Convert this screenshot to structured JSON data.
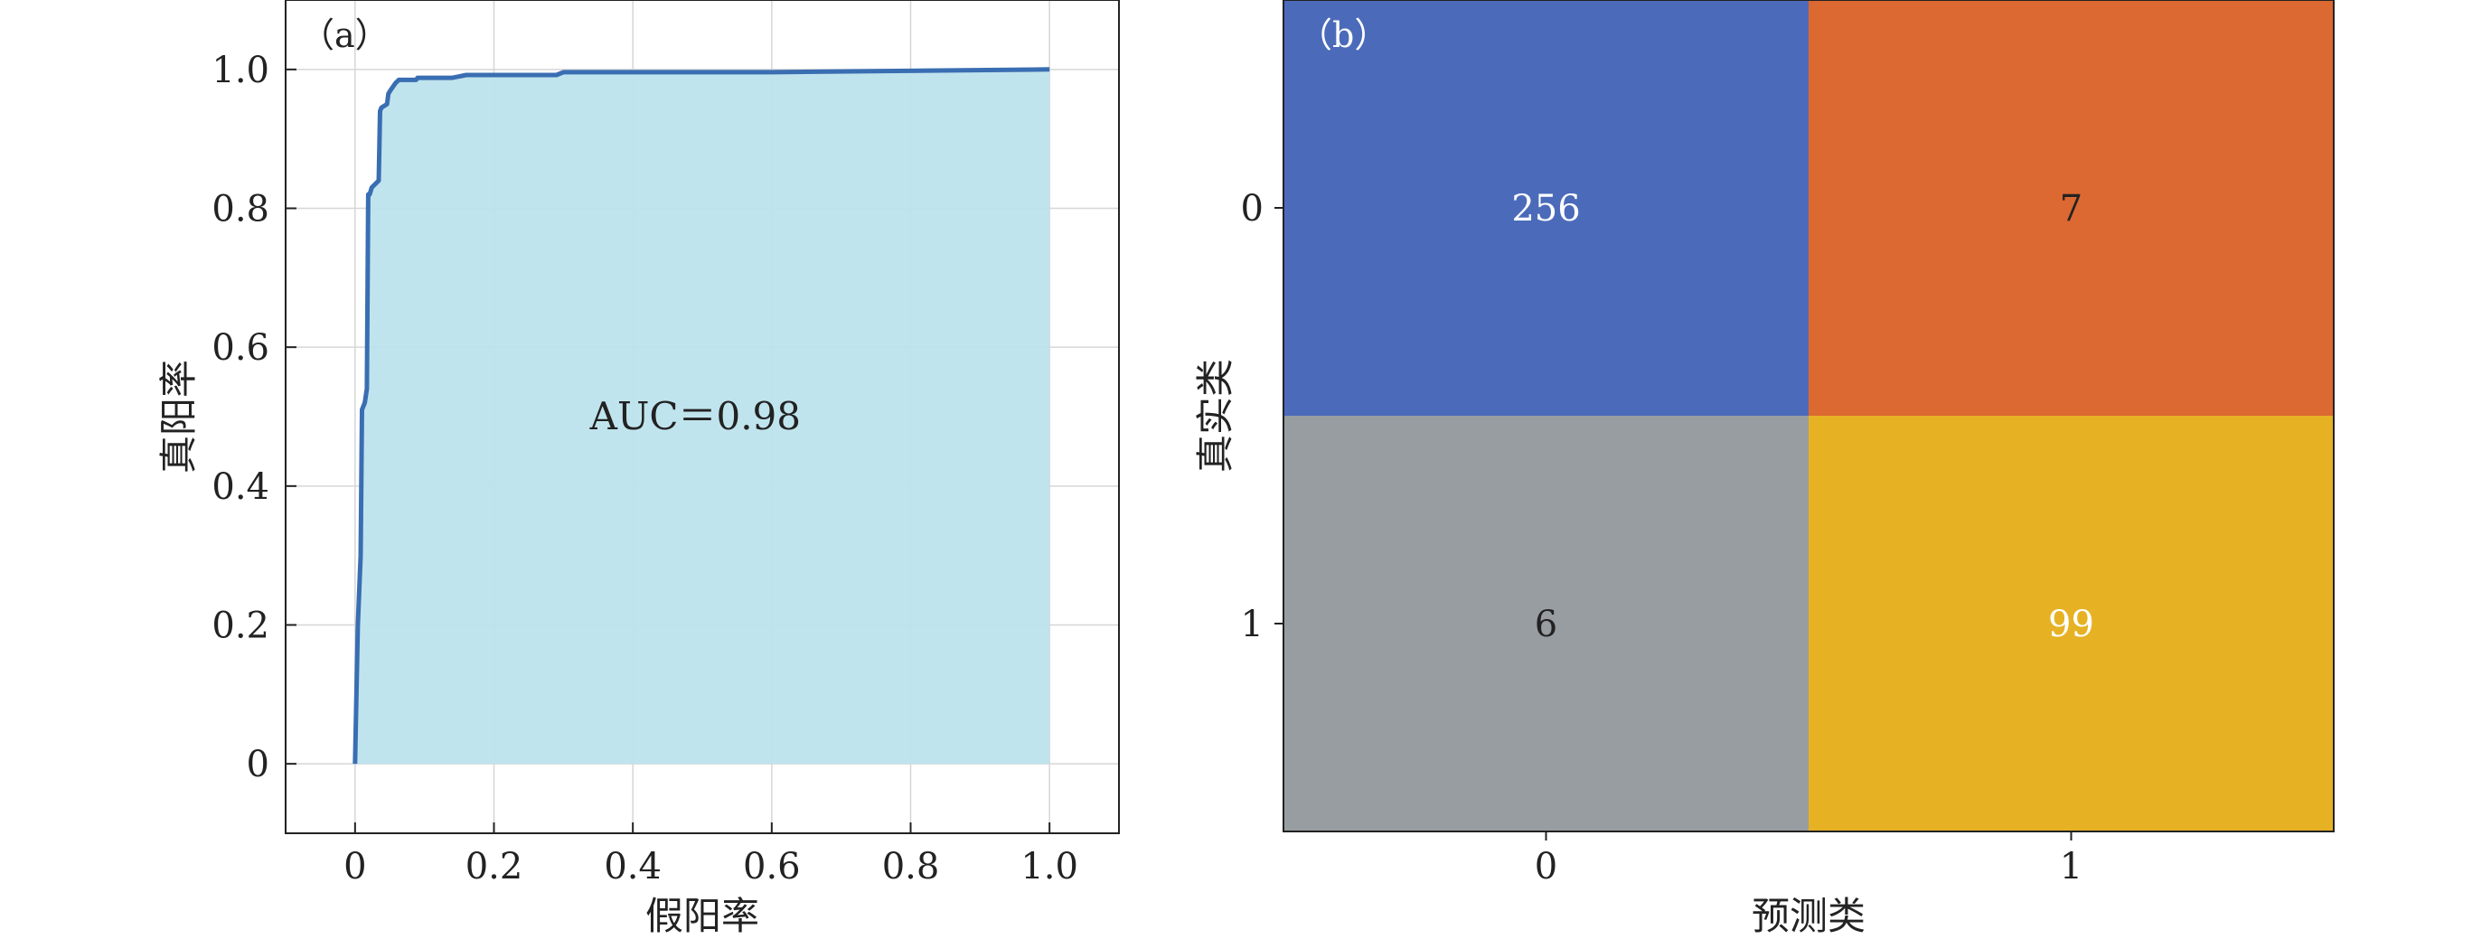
{
  "chart_data": [
    {
      "type": "line",
      "panel_label": "（a）",
      "xlabel": "假阳率",
      "ylabel": "真阳率",
      "xlim": [
        -0.1,
        1.1
      ],
      "ylim": [
        -0.1,
        1.1
      ],
      "xticks": [
        0,
        0.2,
        0.4,
        0.6,
        0.8,
        1.0
      ],
      "xtick_labels": [
        "0",
        "0.2",
        "0.4",
        "0.6",
        "0.8",
        "1.0"
      ],
      "yticks": [
        0,
        0.2,
        0.4,
        0.6,
        0.8,
        1.0
      ],
      "ytick_labels": [
        "0",
        "0.2",
        "0.4",
        "0.6",
        "0.8",
        "1.0"
      ],
      "grid": true,
      "area_fill": true,
      "annotation": "AUC＝0.98",
      "series": [
        {
          "x": [
            0,
            0.004,
            0.008,
            0.01,
            0.014,
            0.017,
            0.019,
            0.021,
            0.024,
            0.034,
            0.036,
            0.038,
            0.046,
            0.048,
            0.051,
            0.058,
            0.063,
            0.088,
            0.09,
            0.14,
            0.16,
            0.29,
            0.3,
            0.6,
            1.0
          ],
          "y": [
            0,
            0.2,
            0.3,
            0.51,
            0.52,
            0.54,
            0.82,
            0.82,
            0.83,
            0.84,
            0.94,
            0.945,
            0.95,
            0.965,
            0.97,
            0.98,
            0.985,
            0.985,
            0.988,
            0.988,
            0.992,
            0.992,
            0.996,
            0.996,
            1.0
          ]
        }
      ],
      "colors": {
        "line": "#3a6eb2",
        "fill": "#bde3ec"
      }
    },
    {
      "type": "heatmap",
      "panel_label": "（b）",
      "xlabel": "预测类",
      "ylabel": "真实类",
      "x_categories": [
        "0",
        "1"
      ],
      "y_categories": [
        "0",
        "1"
      ],
      "values": [
        [
          256,
          7
        ],
        [
          6,
          99
        ]
      ],
      "cell_colors": [
        [
          "#4b6bba",
          "#dc6832"
        ],
        [
          "#989da1",
          "#e6b224"
        ]
      ],
      "text_colors": [
        [
          "#ffffff",
          "#222222"
        ],
        [
          "#222222",
          "#ffffff"
        ]
      ]
    }
  ]
}
